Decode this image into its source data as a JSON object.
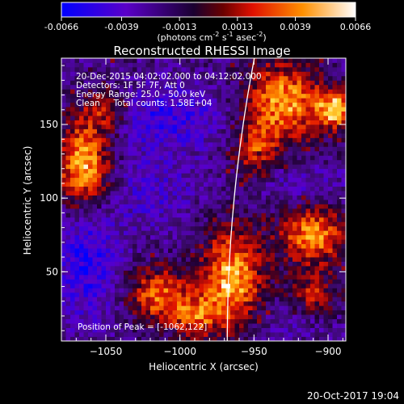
{
  "colorbar": {
    "ticks": [
      "-0.0066",
      "-0.0039",
      "-0.0013",
      "0.0013",
      "0.0039",
      "0.0066"
    ],
    "tick_values": [
      -0.0066,
      -0.0039,
      -0.0013,
      0.0013,
      0.0039,
      0.0066
    ],
    "units_label": "(photons cm",
    "units_sup1": "-2",
    "units_mid1": " s",
    "units_sup2": "-1",
    "units_mid2": " asec",
    "units_sup3": "-2",
    "units_end": ")"
  },
  "chart_data": {
    "type": "heatmap",
    "title": "Reconstructed RHESSI Image",
    "xlabel": "Heliocentric X (arcsec)",
    "ylabel": "Heliocentric Y (arcsec)",
    "xlim": [
      -1080,
      -888
    ],
    "ylim": [
      3,
      195
    ],
    "xticks": [
      -1050,
      -1000,
      -950,
      -900
    ],
    "xtick_labels": [
      "−1050",
      "−1000",
      "−950",
      "−900"
    ],
    "yticks": [
      50,
      100,
      150
    ],
    "ytick_labels": [
      "50",
      "100",
      "150"
    ],
    "zlim": [
      -0.0066,
      0.0066
    ],
    "colormap": [
      "#0000ff",
      "#5a00c8",
      "#220033",
      "#dd2200",
      "#ffa000",
      "#ffffff"
    ],
    "grid": false,
    "limb_line": true,
    "annotations": [
      "20-Dec-2015 04:02:02.000 to 04:12:02.000",
      "Detectors: 1F 5F 7F, Att 0",
      "Energy Range: 25.0 - 50.0 keV",
      "Clean     Total counts: 1.58E+04"
    ],
    "peak_text": "Position of Peak = [-1062,122]",
    "sources": [
      {
        "x": -1065,
        "y": 122,
        "sx": 13,
        "sy": 22,
        "amp": 1.0
      },
      {
        "x": -1050,
        "y": 160,
        "sx": 11,
        "sy": 10,
        "amp": 0.55
      },
      {
        "x": -1015,
        "y": 35,
        "sx": 14,
        "sy": 13,
        "amp": 0.75
      },
      {
        "x": -990,
        "y": 20,
        "sx": 12,
        "sy": 10,
        "amp": 0.6
      },
      {
        "x": -965,
        "y": 45,
        "sx": 15,
        "sy": 25,
        "amp": 0.95
      },
      {
        "x": -910,
        "y": 75,
        "sx": 16,
        "sy": 14,
        "amp": 0.85
      },
      {
        "x": -910,
        "y": 35,
        "sx": 12,
        "sy": 10,
        "amp": 0.5
      },
      {
        "x": -930,
        "y": 165,
        "sx": 18,
        "sy": 20,
        "amp": 0.9
      },
      {
        "x": -895,
        "y": 160,
        "sx": 9,
        "sy": 9,
        "amp": 0.95
      },
      {
        "x": -950,
        "y": 130,
        "sx": 10,
        "sy": 14,
        "amp": 0.55
      }
    ],
    "negatives": [
      {
        "x": -1063,
        "y": 60,
        "sx": 15,
        "sy": 30,
        "amp": 0.55
      },
      {
        "x": -1010,
        "y": 155,
        "sx": 30,
        "sy": 15,
        "amp": 0.45
      },
      {
        "x": -1020,
        "y": 105,
        "sx": 22,
        "sy": 18,
        "amp": 0.3
      },
      {
        "x": -925,
        "y": 110,
        "sx": 30,
        "sy": 10,
        "amp": 0.25
      },
      {
        "x": -940,
        "y": 15,
        "sx": 25,
        "sy": 10,
        "amp": 0.2
      }
    ]
  },
  "footer": {
    "timestamp": "20-Oct-2017 19:04"
  }
}
